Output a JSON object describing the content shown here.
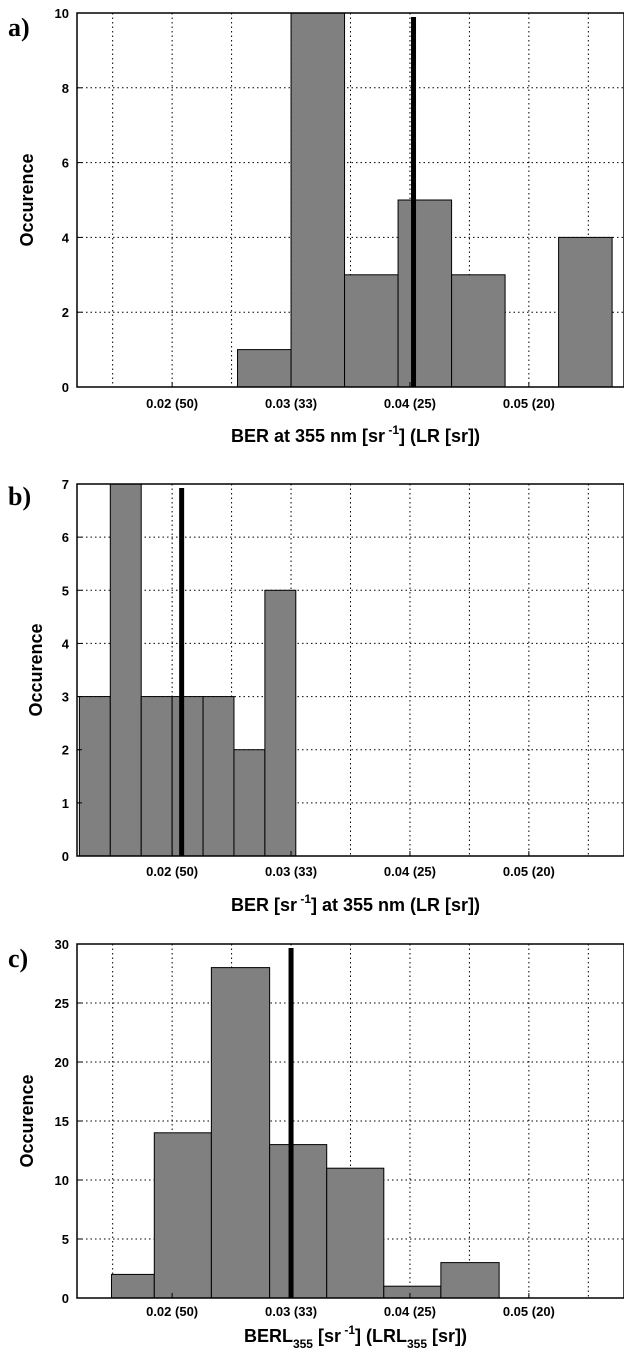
{
  "chart_data": [
    {
      "type": "bar",
      "panel_label": "a)",
      "xlabel_parts": [
        "BER at 355 nm [sr",
        " -1",
        "] (LR [sr])"
      ],
      "ylabel": "Occurence",
      "xlim": [
        0.012,
        0.058
      ],
      "ylim": [
        0,
        10
      ],
      "yticks": [
        0,
        2,
        4,
        6,
        8,
        10
      ],
      "xticks": [
        {
          "value": 0.02,
          "label": "0.02 (50)"
        },
        {
          "value": 0.03,
          "label": "0.03 (33)"
        },
        {
          "value": 0.04,
          "label": "0.04 (25)"
        },
        {
          "value": 0.05,
          "label": "0.05 (20)"
        }
      ],
      "grid_x": [
        0.015,
        0.02,
        0.025,
        0.03,
        0.035,
        0.04,
        0.045,
        0.05,
        0.055
      ],
      "bins": [
        {
          "start": 0.0255,
          "end": 0.03,
          "count": 1
        },
        {
          "start": 0.03,
          "end": 0.0345,
          "count": 10
        },
        {
          "start": 0.0345,
          "end": 0.039,
          "count": 3
        },
        {
          "start": 0.039,
          "end": 0.0435,
          "count": 5
        },
        {
          "start": 0.0435,
          "end": 0.048,
          "count": 3
        },
        {
          "start": 0.048,
          "end": 0.0525,
          "count": 0
        },
        {
          "start": 0.0525,
          "end": 0.057,
          "count": 4
        }
      ],
      "mean_line": 0.0403,
      "grid": true
    },
    {
      "type": "bar",
      "panel_label": "b)",
      "xlabel_parts": [
        "BER [sr",
        " -1",
        "] at 355 nm (LR [sr])"
      ],
      "ylabel": "Occurence",
      "xlim": [
        0.012,
        0.058
      ],
      "ylim": [
        0,
        7
      ],
      "yticks": [
        0,
        1,
        2,
        3,
        4,
        5,
        6,
        7
      ],
      "xticks": [
        {
          "value": 0.02,
          "label": "0.02 (50)"
        },
        {
          "value": 0.03,
          "label": "0.03 (33)"
        },
        {
          "value": 0.04,
          "label": "0.04 (25)"
        },
        {
          "value": 0.05,
          "label": "0.05 (20)"
        }
      ],
      "grid_x": [
        0.015,
        0.02,
        0.025,
        0.03,
        0.035,
        0.04,
        0.045,
        0.05,
        0.055
      ],
      "bins": [
        {
          "start": 0.0122,
          "end": 0.0148,
          "count": 3
        },
        {
          "start": 0.0148,
          "end": 0.0174,
          "count": 7
        },
        {
          "start": 0.0174,
          "end": 0.02,
          "count": 3
        },
        {
          "start": 0.02,
          "end": 0.0226,
          "count": 3
        },
        {
          "start": 0.0226,
          "end": 0.0252,
          "count": 3
        },
        {
          "start": 0.0252,
          "end": 0.0278,
          "count": 2
        },
        {
          "start": 0.0278,
          "end": 0.0304,
          "count": 5
        }
      ],
      "mean_line": 0.0208,
      "grid": true
    },
    {
      "type": "bar",
      "panel_label": "c)",
      "xlabel_parts": [
        "BERL",
        "355",
        " [sr",
        " -1",
        "] (LRL",
        "355",
        " [sr])"
      ],
      "ylabel": "Occurence",
      "xlim": [
        0.012,
        0.058
      ],
      "ylim": [
        0,
        30
      ],
      "yticks": [
        0,
        5,
        10,
        15,
        20,
        25,
        30
      ],
      "xticks": [
        {
          "value": 0.02,
          "label": "0.02 (50)"
        },
        {
          "value": 0.03,
          "label": "0.03 (33)"
        },
        {
          "value": 0.04,
          "label": "0.04 (25)"
        },
        {
          "value": 0.05,
          "label": "0.05 (20)"
        }
      ],
      "grid_x": [
        0.015,
        0.02,
        0.025,
        0.03,
        0.035,
        0.04,
        0.045,
        0.05,
        0.055
      ],
      "bins": [
        {
          "start": 0.0149,
          "end": 0.0185,
          "count": 2
        },
        {
          "start": 0.0185,
          "end": 0.0233,
          "count": 14
        },
        {
          "start": 0.0233,
          "end": 0.0282,
          "count": 28
        },
        {
          "start": 0.0282,
          "end": 0.033,
          "count": 13
        },
        {
          "start": 0.033,
          "end": 0.0378,
          "count": 11
        },
        {
          "start": 0.0378,
          "end": 0.0426,
          "count": 1
        },
        {
          "start": 0.0426,
          "end": 0.0475,
          "count": 3
        }
      ],
      "mean_line": 0.03,
      "grid": true
    }
  ]
}
